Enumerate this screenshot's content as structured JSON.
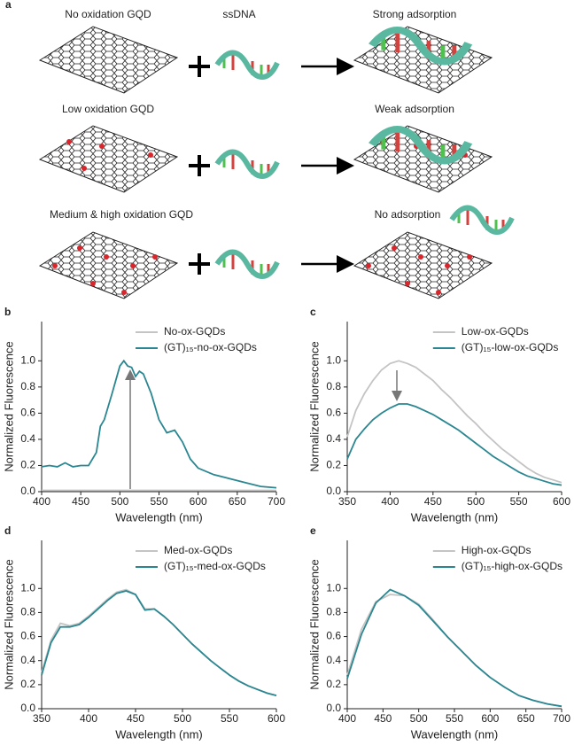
{
  "panel_a": {
    "label": "a",
    "rows": [
      {
        "gqd": "No oxidation GQD",
        "dna": "ssDNA",
        "result": "Strong adsorption"
      },
      {
        "gqd": "Low oxidation GQD",
        "result": "Weak adsorption"
      },
      {
        "gqd": "Medium & high oxidation GQD",
        "result": "No adsorption"
      }
    ]
  },
  "chart_data": [
    {
      "type": "line",
      "panel": "b",
      "xlabel": "Wavelength (nm)",
      "ylabel": "Normalized Fluorescence",
      "legend": "upper center",
      "x": [
        400,
        410,
        420,
        430,
        440,
        450,
        460,
        470,
        475,
        480,
        490,
        500,
        505,
        510,
        515,
        520,
        525,
        530,
        540,
        550,
        560,
        570,
        580,
        590,
        600,
        620,
        640,
        660,
        680,
        700
      ],
      "xlim": [
        400,
        700
      ],
      "xticks": [
        400,
        450,
        500,
        550,
        600,
        650,
        700
      ],
      "ylim": [
        0,
        1.3
      ],
      "yticks": [
        {
          "value": 0,
          "label": "0.0"
        },
        0.2,
        0.4,
        0.6,
        0.8,
        {
          "value": 1,
          "label": "1.0"
        }
      ],
      "series": [
        {
          "name": "No-ox-GQDs",
          "color": "#c4c4c4",
          "values": [
            0.01,
            0.01,
            0.01,
            0.01,
            0.01,
            0.01,
            0.01,
            0.01,
            0.01,
            0.01,
            0.01,
            0.01,
            0.01,
            0.01,
            0.01,
            0.01,
            0.01,
            0.01,
            0.01,
            0.01,
            0.01,
            0.01,
            0.01,
            0.01,
            0.01,
            0.01,
            0.01,
            0.01,
            0.01,
            0.01
          ]
        },
        {
          "name": "(GT)₁₅-no-ox-GQDs",
          "color": "#2a8791",
          "values": [
            0.19,
            0.2,
            0.19,
            0.22,
            0.19,
            0.2,
            0.2,
            0.3,
            0.5,
            0.55,
            0.75,
            0.96,
            1.0,
            0.96,
            0.95,
            0.88,
            0.92,
            0.9,
            0.75,
            0.55,
            0.45,
            0.47,
            0.38,
            0.25,
            0.18,
            0.13,
            0.1,
            0.07,
            0.04,
            0.03
          ]
        }
      ]
    },
    {
      "type": "line",
      "panel": "c",
      "xlabel": "Wavelength (nm)",
      "ylabel": "Normalized Fluorescence",
      "legend": "upper center",
      "x": [
        350,
        360,
        370,
        380,
        390,
        400,
        410,
        420,
        430,
        440,
        450,
        460,
        470,
        480,
        490,
        500,
        510,
        520,
        530,
        540,
        550,
        560,
        570,
        580,
        590,
        600
      ],
      "xlim": [
        350,
        600
      ],
      "xticks": [
        350,
        400,
        450,
        500,
        550,
        600
      ],
      "ylim": [
        0,
        1.3
      ],
      "yticks": [
        {
          "value": 0,
          "label": "0.0"
        },
        0.2,
        0.4,
        0.6,
        0.8,
        {
          "value": 1,
          "label": "1.0"
        }
      ],
      "series": [
        {
          "name": "Low-ox-GQDs",
          "color": "#c4c4c4",
          "values": [
            0.42,
            0.62,
            0.75,
            0.85,
            0.93,
            0.98,
            1.0,
            0.98,
            0.95,
            0.9,
            0.85,
            0.78,
            0.72,
            0.65,
            0.58,
            0.52,
            0.45,
            0.39,
            0.33,
            0.28,
            0.23,
            0.18,
            0.14,
            0.11,
            0.09,
            0.07
          ]
        },
        {
          "name": "(GT)₁₅-low-ox-GQDs",
          "color": "#2a8791",
          "values": [
            0.25,
            0.4,
            0.48,
            0.55,
            0.6,
            0.64,
            0.67,
            0.67,
            0.65,
            0.62,
            0.59,
            0.55,
            0.51,
            0.47,
            0.42,
            0.37,
            0.32,
            0.27,
            0.23,
            0.19,
            0.15,
            0.12,
            0.1,
            0.08,
            0.06,
            0.05
          ]
        }
      ]
    },
    {
      "type": "line",
      "panel": "d",
      "xlabel": "Wavelength (nm)",
      "ylabel": "Normalized Fluorescence",
      "legend": "upper center",
      "x": [
        350,
        360,
        370,
        380,
        390,
        400,
        410,
        420,
        430,
        440,
        450,
        460,
        470,
        480,
        490,
        500,
        510,
        520,
        530,
        540,
        550,
        560,
        570,
        580,
        590,
        600
      ],
      "xlim": [
        350,
        600
      ],
      "xticks": [
        350,
        400,
        450,
        500,
        550,
        600
      ],
      "ylim": [
        0,
        1.4
      ],
      "yticks": [
        {
          "value": 0,
          "label": "0.0"
        },
        0.2,
        0.4,
        0.6,
        0.8,
        {
          "value": 1,
          "label": "1.0"
        }
      ],
      "series": [
        {
          "name": "Med-ox-GQDs",
          "color": "#c4c4c4",
          "values": [
            0.3,
            0.57,
            0.71,
            0.69,
            0.71,
            0.77,
            0.84,
            0.91,
            0.97,
            0.99,
            0.95,
            0.83,
            0.83,
            0.77,
            0.7,
            0.62,
            0.54,
            0.47,
            0.4,
            0.34,
            0.28,
            0.23,
            0.19,
            0.16,
            0.13,
            0.11
          ]
        },
        {
          "name": "(GT)₁₅-med-ox-GQDs",
          "color": "#2a8791",
          "values": [
            0.28,
            0.55,
            0.68,
            0.68,
            0.7,
            0.76,
            0.83,
            0.9,
            0.96,
            0.98,
            0.95,
            0.82,
            0.83,
            0.77,
            0.7,
            0.62,
            0.54,
            0.47,
            0.4,
            0.34,
            0.28,
            0.23,
            0.19,
            0.16,
            0.13,
            0.11
          ]
        }
      ]
    },
    {
      "type": "line",
      "panel": "e",
      "xlabel": "Wavelength (nm)",
      "ylabel": "Normalized Fluorescence",
      "legend": "upper center",
      "x": [
        400,
        420,
        440,
        460,
        480,
        500,
        520,
        540,
        560,
        580,
        600,
        620,
        640,
        660,
        680,
        700
      ],
      "xlim": [
        400,
        700
      ],
      "xticks": [
        400,
        450,
        500,
        550,
        600,
        650,
        700
      ],
      "ylim": [
        0,
        1.4
      ],
      "yticks": [
        {
          "value": 0,
          "label": "0.0"
        },
        0.2,
        0.4,
        0.6,
        0.8,
        {
          "value": 1,
          "label": "1.0"
        }
      ],
      "series": [
        {
          "name": "High-ox-GQDs",
          "color": "#c4c4c4",
          "values": [
            0.28,
            0.66,
            0.89,
            0.95,
            0.94,
            0.87,
            0.74,
            0.6,
            0.48,
            0.36,
            0.26,
            0.18,
            0.11,
            0.07,
            0.04,
            0.02
          ]
        },
        {
          "name": "(GT)₁₅-high-ox-GQDs",
          "color": "#2a8791",
          "values": [
            0.25,
            0.62,
            0.88,
            0.99,
            0.94,
            0.86,
            0.73,
            0.6,
            0.48,
            0.36,
            0.26,
            0.18,
            0.11,
            0.07,
            0.04,
            0.02
          ]
        }
      ]
    }
  ]
}
